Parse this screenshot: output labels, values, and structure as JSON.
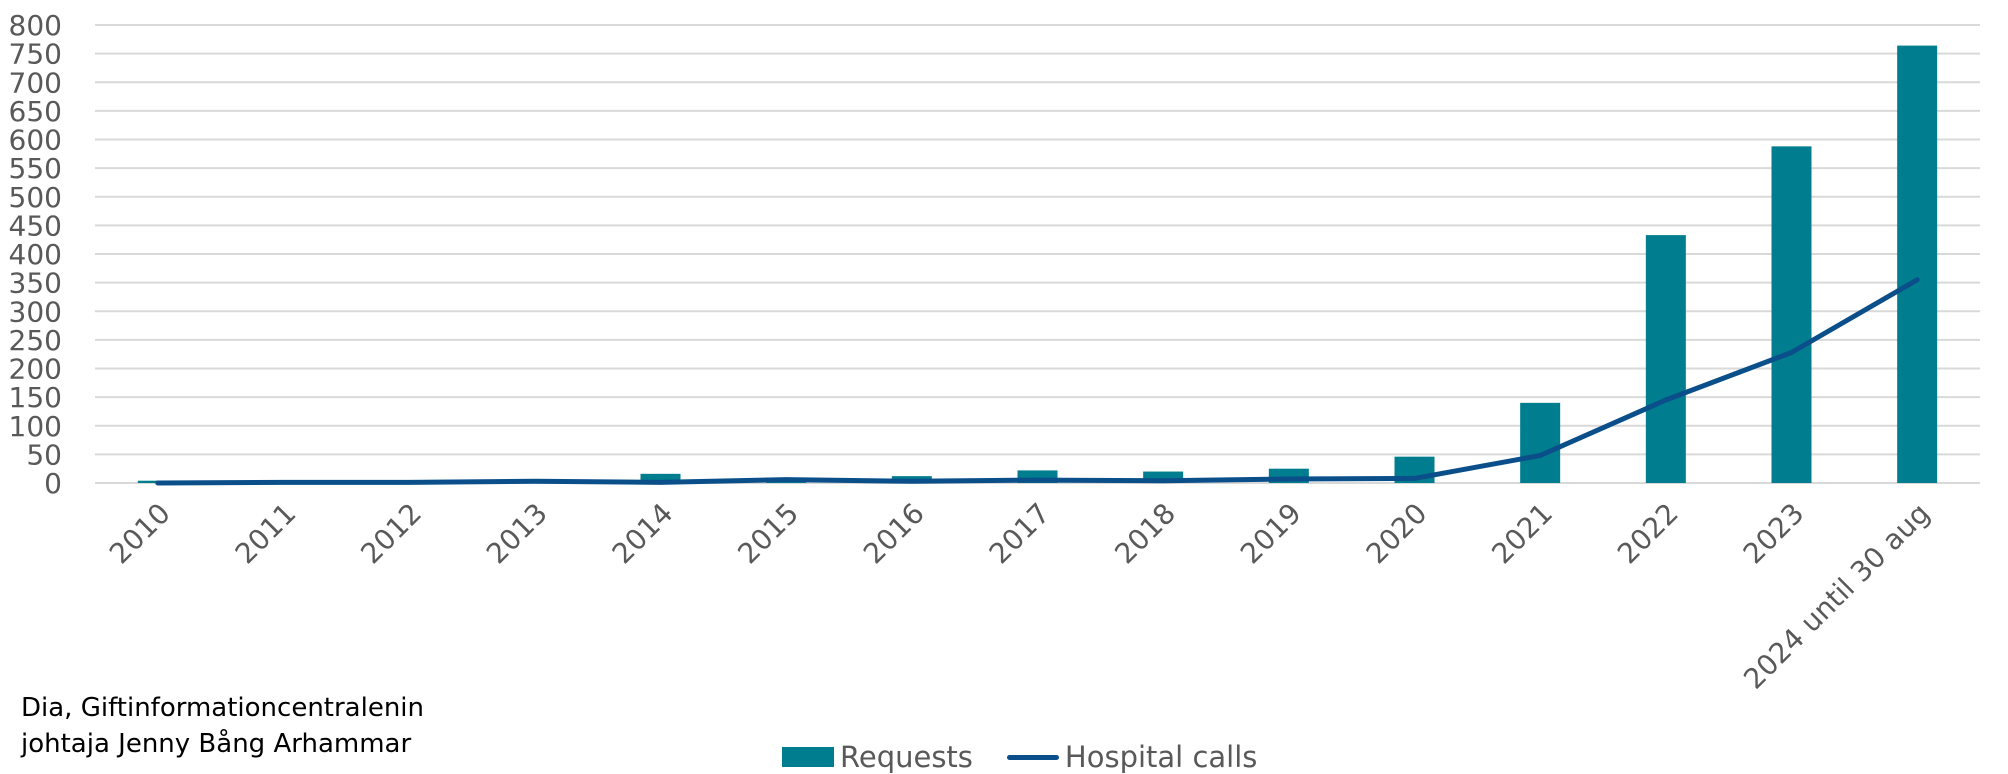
{
  "chart_data": {
    "type": "bar",
    "categories": [
      "2010",
      "2011",
      "2012",
      "2013",
      "2014",
      "2015",
      "2016",
      "2017",
      "2018",
      "2019",
      "2020",
      "2021",
      "2022",
      "2023",
      "2024 until 30 aug"
    ],
    "series": [
      {
        "name": "Requests",
        "type": "bar",
        "color": "#007e8f",
        "values": [
          4,
          0,
          0,
          0,
          16,
          8,
          12,
          22,
          20,
          25,
          46,
          140,
          433,
          588,
          764
        ]
      },
      {
        "name": "Hospital calls",
        "type": "line",
        "color": "#0b4f8a",
        "values": [
          0,
          1,
          1,
          3,
          1,
          6,
          3,
          5,
          4,
          7,
          8,
          48,
          145,
          228,
          355
        ]
      }
    ],
    "ylim": [
      0,
      800
    ],
    "yticks": [
      0,
      50,
      100,
      150,
      200,
      250,
      300,
      350,
      400,
      450,
      500,
      550,
      600,
      650,
      700,
      750,
      800
    ],
    "grid": true,
    "legend_position": "bottom"
  },
  "caption": {
    "line1": "Dia, Giftinformationcentralenin",
    "line2": "johtaja Jenny Bång Arhammar"
  },
  "legend": {
    "requests_label": "Requests",
    "hospital_label": "Hospital calls"
  }
}
